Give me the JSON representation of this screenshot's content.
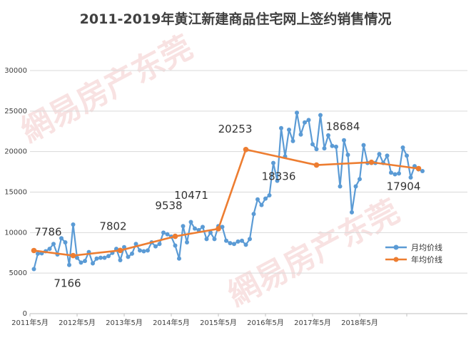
{
  "chart_data": {
    "type": "line",
    "title": "2011-2019年黄江新建商品住宅网上签约销售情况",
    "xlabel": "",
    "ylabel": "",
    "ylim": [
      0,
      30000
    ],
    "yticks": [
      0,
      5000,
      10000,
      15000,
      20000,
      25000,
      30000
    ],
    "xticks": [
      "2011年5月",
      "2012年5月",
      "2013年5月",
      "2014年5月",
      "2015年5月",
      "2016年5月",
      "2017年5月",
      "2018年5月"
    ],
    "grid": true,
    "legend_position": "right",
    "colors": {
      "monthly": "#5b9bd5",
      "yearly": "#ed7d31"
    },
    "watermark": "網易房产东莞",
    "series": [
      {
        "name": "月均价线",
        "start": "2011-05",
        "values": [
          5500,
          7400,
          7450,
          7700,
          8000,
          8600,
          7300,
          9300,
          8800,
          6000,
          11000,
          6900,
          6300,
          6500,
          7600,
          6200,
          6800,
          6900,
          6900,
          7100,
          7500,
          8000,
          6600,
          8200,
          7000,
          7400,
          8600,
          7800,
          7700,
          7800,
          8800,
          8300,
          8600,
          10000,
          9800,
          9500,
          8400,
          6800,
          10800,
          8800,
          11300,
          10500,
          10300,
          10700,
          9200,
          10000,
          9200,
          10800,
          10700,
          9000,
          8700,
          8600,
          8900,
          9000,
          8500,
          9200,
          12300,
          14100,
          13400,
          14200,
          14600,
          18600,
          16400,
          22900,
          19400,
          22700,
          21300,
          24800,
          22100,
          23600,
          23900,
          20900,
          20300,
          24500,
          20400,
          22000,
          20700,
          20600,
          15700,
          21400,
          19600,
          12500,
          15700,
          16600,
          20800,
          18600,
          18600,
          18600,
          19700,
          18600,
          19500,
          17400,
          17200,
          17300,
          20500,
          19500,
          16800,
          18200,
          17800,
          17600
        ]
      },
      {
        "name": "年均价线",
        "x": [
          "2011",
          "2012",
          "2013",
          "2014",
          "2015",
          "2016",
          "2017",
          "2018",
          "2019"
        ],
        "values": [
          7786,
          7166,
          7802,
          9538,
          10471,
          20253,
          18336,
          18684,
          17904
        ]
      }
    ]
  }
}
